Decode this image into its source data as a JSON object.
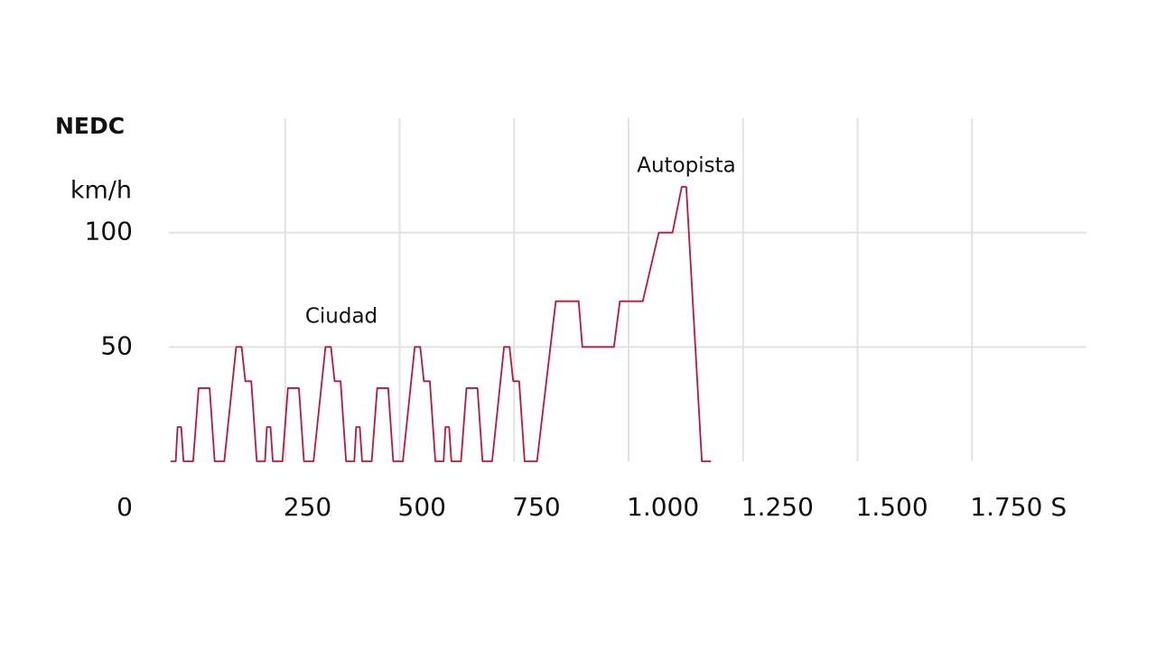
{
  "chart_data": {
    "type": "line",
    "title": "NEDC",
    "y_label": "km/h",
    "x_unit": "S",
    "annotations": [
      "Ciudad",
      "Autopista"
    ],
    "x": [
      0,
      11,
      15,
      23,
      28,
      49,
      61,
      85,
      96,
      117,
      143,
      155,
      163,
      176,
      188,
      195,
      206,
      210,
      218,
      223,
      244,
      256,
      280,
      291,
      312,
      338,
      350,
      358,
      371,
      383,
      390,
      401,
      405,
      413,
      418,
      439,
      451,
      475,
      486,
      507,
      533,
      545,
      553,
      566,
      578,
      585,
      596,
      600,
      608,
      613,
      634,
      646,
      670,
      681,
      702,
      728,
      740,
      748,
      761,
      773,
      800,
      841,
      891,
      899,
      968,
      981,
      1031,
      1066,
      1096,
      1116,
      1126,
      1160,
      1180
    ],
    "series": [
      {
        "name": "NEDC",
        "color": "#c0143c",
        "values": [
          0,
          0,
          15,
          15,
          0,
          0,
          32,
          32,
          0,
          0,
          50,
          50,
          35,
          35,
          0,
          0,
          0,
          15,
          15,
          0,
          0,
          32,
          32,
          0,
          0,
          50,
          50,
          35,
          35,
          0,
          0,
          0,
          15,
          15,
          0,
          0,
          32,
          32,
          0,
          0,
          50,
          50,
          35,
          35,
          0,
          0,
          0,
          15,
          15,
          0,
          0,
          32,
          32,
          0,
          0,
          50,
          50,
          35,
          35,
          0,
          0,
          70,
          70,
          50,
          50,
          70,
          70,
          100,
          100,
          120,
          120,
          0,
          0
        ]
      }
    ],
    "xlim": [
      0,
      2000
    ],
    "ylim": [
      0,
      150
    ],
    "xticks": [
      250,
      500,
      750,
      {
        "value": 1000,
        "label": "1.000"
      },
      {
        "value": 1250,
        "label": "1.250"
      },
      {
        "value": 1500,
        "label": "1.500"
      },
      {
        "value": 1750,
        "label": "1.750"
      }
    ],
    "yticks": [
      0,
      50,
      100
    ],
    "grid": true
  }
}
